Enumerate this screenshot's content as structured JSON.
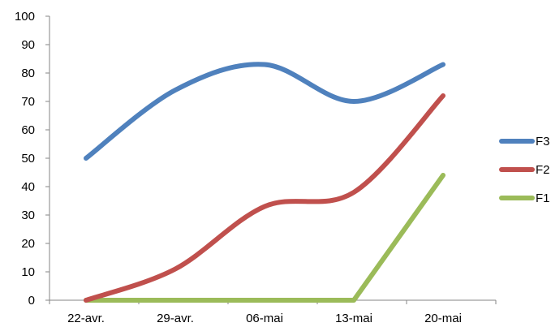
{
  "chart_data": {
    "type": "line",
    "categories": [
      "22-avr.",
      "29-avr.",
      "06-mai",
      "13-mai",
      "20-mai"
    ],
    "series": [
      {
        "name": "F3",
        "color": "#4f81bd",
        "values": [
          50,
          74,
          83,
          70,
          83
        ],
        "smooth": true
      },
      {
        "name": "F2",
        "color": "#c0504d",
        "values": [
          0,
          11,
          33,
          38,
          72
        ],
        "smooth": true
      },
      {
        "name": "F1",
        "color": "#9bbb59",
        "values": [
          0,
          0,
          0,
          0,
          44
        ],
        "smooth": false
      }
    ],
    "ylim": [
      0,
      100
    ],
    "yticks": [
      "0",
      "10",
      "20",
      "30",
      "40",
      "50",
      "60",
      "70",
      "80",
      "90",
      "100"
    ],
    "grid": false,
    "legend_position": "right"
  }
}
